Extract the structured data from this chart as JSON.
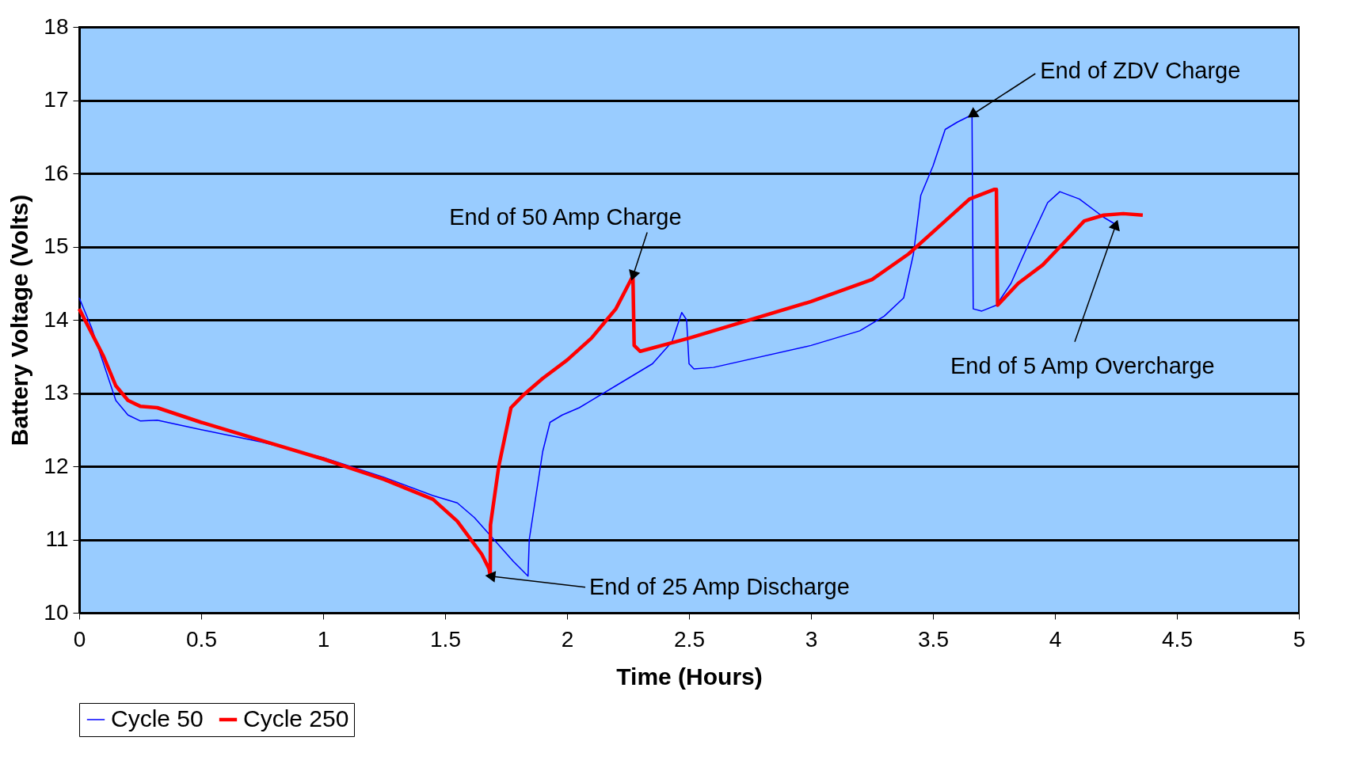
{
  "chart_data": {
    "type": "line",
    "xlabel": "Time (Hours)",
    "ylabel": "Battery Voltage (Volts)",
    "xlim": [
      0,
      5
    ],
    "xticks": [
      0,
      0.5,
      1,
      1.5,
      2,
      2.5,
      3,
      3.5,
      4,
      4.5,
      5
    ],
    "ylim": [
      10,
      18
    ],
    "yticks": [
      10,
      11,
      12,
      13,
      14,
      15,
      16,
      17,
      18
    ],
    "grid": "y",
    "legend": "bottom",
    "marker": "none",
    "line_style": "solid",
    "series": [
      {
        "name": "Cycle 50",
        "color": "#0000ff",
        "x": [
          0,
          0.05,
          0.1,
          0.15,
          0.2,
          0.25,
          0.32,
          0.5,
          0.75,
          1.0,
          1.25,
          1.45,
          1.55,
          1.62,
          1.7,
          1.78,
          1.84,
          1.845,
          1.9,
          1.93,
          1.98,
          2.05,
          2.2,
          2.35,
          2.43,
          2.47,
          2.49,
          2.5,
          2.52,
          2.6,
          3.0,
          3.2,
          3.3,
          3.38,
          3.42,
          3.45,
          3.5,
          3.55,
          3.6,
          3.66,
          3.665,
          3.7,
          3.76,
          3.82,
          3.9,
          3.97,
          4.02,
          4.1,
          4.2,
          4.25
        ],
        "values": [
          14.3,
          13.9,
          13.4,
          12.9,
          12.7,
          12.62,
          12.63,
          12.5,
          12.33,
          12.12,
          11.85,
          11.6,
          11.5,
          11.3,
          11.0,
          10.7,
          10.5,
          11.0,
          12.2,
          12.6,
          12.7,
          12.8,
          13.1,
          13.4,
          13.7,
          14.1,
          14.0,
          13.4,
          13.33,
          13.35,
          13.65,
          13.85,
          14.05,
          14.3,
          14.9,
          15.7,
          16.1,
          16.6,
          16.7,
          16.8,
          14.15,
          14.12,
          14.2,
          14.5,
          15.1,
          15.6,
          15.75,
          15.65,
          15.4,
          15.3
        ]
      },
      {
        "name": "Cycle 250",
        "color": "#ff0000",
        "x": [
          0,
          0.1,
          0.15,
          0.2,
          0.25,
          0.32,
          0.5,
          0.75,
          1.0,
          1.25,
          1.45,
          1.55,
          1.65,
          1.68,
          1.685,
          1.686,
          1.72,
          1.77,
          1.82,
          1.9,
          2.0,
          2.1,
          2.2,
          2.27,
          2.275,
          2.3,
          2.5,
          3.0,
          3.25,
          3.4,
          3.55,
          3.65,
          3.75,
          3.76,
          3.765,
          3.85,
          3.95,
          4.05,
          4.12,
          4.2,
          4.28,
          4.36
        ],
        "values": [
          14.15,
          13.5,
          13.1,
          12.9,
          12.82,
          12.8,
          12.6,
          12.35,
          12.1,
          11.82,
          11.55,
          11.25,
          10.8,
          10.6,
          10.5,
          11.2,
          12.0,
          12.8,
          12.97,
          13.2,
          13.45,
          13.75,
          14.15,
          14.6,
          13.65,
          13.57,
          13.75,
          14.25,
          14.55,
          14.9,
          15.35,
          15.65,
          15.78,
          15.78,
          14.2,
          14.5,
          14.75,
          15.1,
          15.35,
          15.43,
          15.45,
          15.43
        ]
      }
    ],
    "annotations": [
      {
        "text": "End of 50 Amp Charge",
        "x": 2.27,
        "y": 14.6
      },
      {
        "text": "End of 25 Amp Discharge",
        "x": 1.685,
        "y": 10.5
      },
      {
        "text": "End of ZDV Charge",
        "x": 3.66,
        "y": 16.8
      },
      {
        "text": "End of 5 Amp Overcharge",
        "x": 4.25,
        "y": 15.3
      }
    ]
  }
}
